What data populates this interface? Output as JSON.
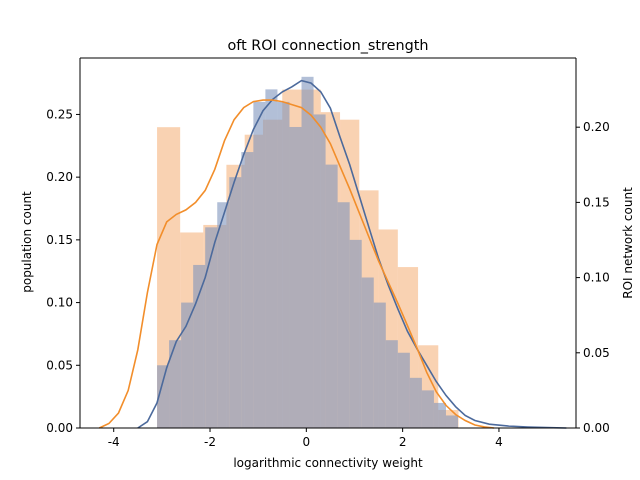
{
  "chart_data": {
    "type": "histogram",
    "title": "oft ROI connection_strength",
    "xlabel": "logarithmic connectivity weight",
    "ylabel_left": "population count",
    "ylabel_right": "ROI network count",
    "xlim": [
      -4.7,
      5.6
    ],
    "ylim_left": [
      0,
      0.295
    ],
    "ylim_right": [
      0,
      0.246
    ],
    "xticks": [
      "-4",
      "-2",
      "0",
      "2",
      "4"
    ],
    "xtick_values": [
      -4,
      -2,
      0,
      2,
      4
    ],
    "yticks_left": [
      "0.00",
      "0.05",
      "0.10",
      "0.15",
      "0.20",
      "0.25"
    ],
    "ytick_values_left": [
      0,
      0.05,
      0.1,
      0.15,
      0.2,
      0.25
    ],
    "yticks_right": [
      "0.00",
      "0.05",
      "0.10",
      "0.15",
      "0.20"
    ],
    "ytick_values_right": [
      0,
      0.05,
      0.1,
      0.15,
      0.2
    ],
    "series": [
      {
        "axis": "left",
        "color": "#4c6a9c",
        "bin_edges": [
          -3.1,
          -2.85,
          -2.6,
          -2.35,
          -2.1,
          -1.85,
          -1.6,
          -1.35,
          -1.1,
          -0.85,
          -0.6,
          -0.35,
          -0.1,
          0.15,
          0.4,
          0.65,
          0.9,
          1.15,
          1.4,
          1.65,
          1.9,
          2.15,
          2.4,
          2.65,
          2.9,
          3.15,
          3.4
        ],
        "values": [
          0.05,
          0.07,
          0.1,
          0.13,
          0.16,
          0.18,
          0.2,
          0.22,
          0.26,
          0.27,
          0.26,
          0.24,
          0.28,
          0.25,
          0.21,
          0.18,
          0.15,
          0.12,
          0.1,
          0.07,
          0.06,
          0.04,
          0.03,
          0.02,
          0.01,
          0.0
        ],
        "kde_x": [
          -3.5,
          -3.3,
          -3.1,
          -2.9,
          -2.7,
          -2.5,
          -2.3,
          -2.1,
          -1.9,
          -1.7,
          -1.5,
          -1.3,
          -1.1,
          -0.9,
          -0.7,
          -0.5,
          -0.3,
          -0.1,
          0.1,
          0.3,
          0.5,
          0.7,
          0.9,
          1.1,
          1.3,
          1.5,
          1.7,
          1.9,
          2.1,
          2.3,
          2.5,
          2.7,
          2.9,
          3.1,
          3.3,
          3.5,
          3.8,
          4.2,
          4.6,
          5.0,
          5.4
        ],
        "kde_y": [
          0.0,
          0.005,
          0.02,
          0.048,
          0.069,
          0.081,
          0.099,
          0.12,
          0.148,
          0.172,
          0.196,
          0.218,
          0.238,
          0.253,
          0.262,
          0.268,
          0.272,
          0.277,
          0.275,
          0.268,
          0.255,
          0.232,
          0.21,
          0.185,
          0.16,
          0.135,
          0.114,
          0.095,
          0.077,
          0.063,
          0.05,
          0.037,
          0.026,
          0.017,
          0.01,
          0.006,
          0.003,
          0.0015,
          0.0008,
          0.0003,
          0.0
        ]
      },
      {
        "axis": "right",
        "color": "#f28e2b",
        "bin_edges": [
          -3.1,
          -2.62,
          -2.14,
          -1.66,
          -1.28,
          -0.9,
          -0.5,
          -0.1,
          0.3,
          0.7,
          1.1,
          1.5,
          1.9,
          2.32,
          2.74,
          3.16
        ],
        "values": [
          0.2,
          0.13,
          0.135,
          0.175,
          0.195,
          0.205,
          0.225,
          0.225,
          0.21,
          0.205,
          0.158,
          0.132,
          0.107,
          0.055,
          0.012
        ],
        "kde_x": [
          -4.3,
          -4.1,
          -3.9,
          -3.7,
          -3.5,
          -3.3,
          -3.1,
          -2.9,
          -2.7,
          -2.5,
          -2.3,
          -2.1,
          -1.9,
          -1.7,
          -1.5,
          -1.3,
          -1.1,
          -0.9,
          -0.7,
          -0.5,
          -0.3,
          -0.1,
          0.1,
          0.3,
          0.5,
          0.7,
          0.9,
          1.1,
          1.3,
          1.5,
          1.7,
          1.9,
          2.1,
          2.3,
          2.5,
          2.7,
          2.9,
          3.1,
          3.3,
          3.5,
          3.7,
          3.9
        ],
        "kde_y": [
          0.0,
          0.003,
          0.01,
          0.025,
          0.052,
          0.09,
          0.122,
          0.137,
          0.142,
          0.145,
          0.15,
          0.158,
          0.172,
          0.191,
          0.205,
          0.213,
          0.217,
          0.218,
          0.218,
          0.217,
          0.215,
          0.213,
          0.208,
          0.2,
          0.189,
          0.174,
          0.159,
          0.143,
          0.127,
          0.111,
          0.097,
          0.083,
          0.068,
          0.053,
          0.037,
          0.024,
          0.015,
          0.009,
          0.005,
          0.002,
          0.0007,
          0.0
        ]
      }
    ]
  }
}
